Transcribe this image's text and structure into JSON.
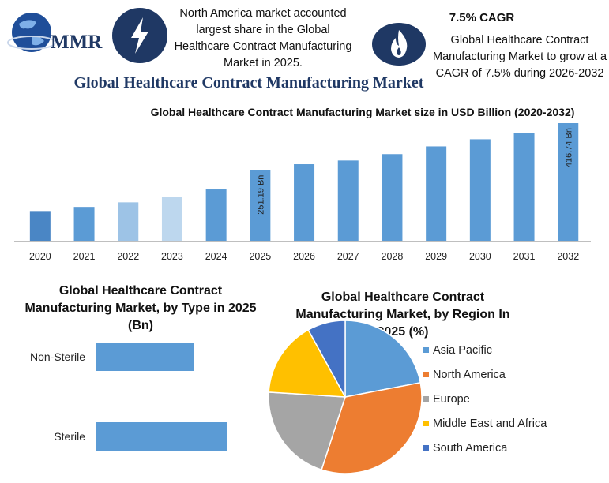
{
  "header": {
    "logo_text": "MMR",
    "left_callout": "North America market accounted largest share in the Global Healthcare Contract Manufacturing Market in 2025.",
    "cagr_title": "7.5% CAGR",
    "right_callout": "Global Healthcare Contract Manufacturing Market to grow at a CAGR of 7.5% during 2026-2032",
    "bolt_icon": "lightning-bolt-icon",
    "fire_icon": "flame-icon"
  },
  "main_title": "Global Healthcare Contract Manufacturing Market",
  "colors": {
    "navy": "#1f3864",
    "bar_blue": "#5b9bd5"
  },
  "chart_data": [
    {
      "type": "bar",
      "title": "Global Healthcare Contract Manufacturing Market size in USD Billion (2020-2032)",
      "categories": [
        "2020",
        "2021",
        "2022",
        "2023",
        "2024",
        "2025",
        "2026",
        "2027",
        "2028",
        "2029",
        "2030",
        "2031",
        "2032"
      ],
      "values": [
        107.4,
        121.8,
        137.9,
        157.2,
        183.3,
        251.19,
        272.2,
        285.2,
        307.7,
        334.9,
        360.0,
        381.0,
        416.74
      ],
      "bar_colors": [
        "#4a86c5",
        "#5b9bd5",
        "#9dc3e6",
        "#bdd7ee",
        "#5b9bd5",
        "#5b9bd5",
        "#5b9bd5",
        "#5b9bd5",
        "#5b9bd5",
        "#5b9bd5",
        "#5b9bd5",
        "#5b9bd5",
        "#5b9bd5"
      ],
      "data_labels": [
        {
          "category": "2025",
          "text": "251.19 Bn"
        },
        {
          "category": "2032",
          "text": "416.74 Bn"
        }
      ],
      "ylim": [
        0,
        416.74
      ]
    },
    {
      "type": "bar",
      "orientation": "horizontal",
      "title": "Global Healthcare Contract Manufacturing Market, by Type in 2025 (Bn)",
      "categories": [
        "Non-Sterile",
        "Sterile"
      ],
      "values": [
        123,
        166
      ]
    },
    {
      "type": "pie",
      "title": "Global Healthcare Contract Manufacturing Market, by Region In 2025 (%)",
      "labels": [
        "Asia Pacific",
        "North America",
        "Europe",
        "Middle East and Africa",
        "South America"
      ],
      "values": [
        22,
        33,
        21,
        16,
        8
      ],
      "colors": [
        "#5b9bd5",
        "#ed7d31",
        "#a5a5a5",
        "#ffc000",
        "#4472c4"
      ],
      "legend_position": "right"
    }
  ]
}
